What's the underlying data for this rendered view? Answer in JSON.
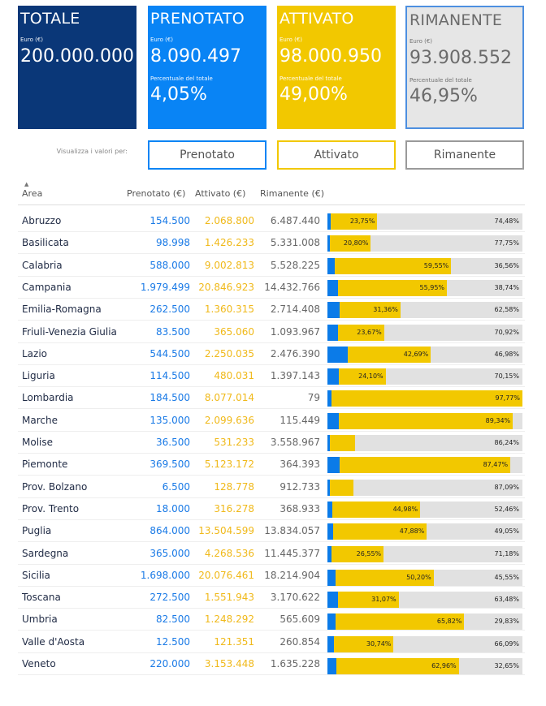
{
  "cards": {
    "totale": {
      "title": "TOTALE",
      "euro_label": "Euro (€)",
      "value": "200.000.000"
    },
    "prenotato": {
      "title": "PRENOTATO",
      "euro_label": "Euro (€)",
      "value": "8.090.497",
      "pct_label": "Percentuale del totale",
      "pct": "4,05%"
    },
    "attivato": {
      "title": "ATTIVATO",
      "euro_label": "Euro (€)",
      "value": "98.000.950",
      "pct_label": "Percentuale del totale",
      "pct": "49,00%"
    },
    "rimanente": {
      "title": "RIMANENTE",
      "euro_label": "Euro (€)",
      "value": "93.908.552",
      "pct_label": "Percentuale del totale",
      "pct": "46,95%"
    }
  },
  "filter": {
    "label": "Visualizza i valori per:",
    "buttons": {
      "prenotato": "Prenotato",
      "attivato": "Attivato",
      "rimanente": "Rimanente"
    }
  },
  "colors": {
    "blue_dark": "#0a3778",
    "blue": "#0984f5",
    "yellow": "#f2c800",
    "grey": "#e6e6e6"
  },
  "table": {
    "headers": {
      "area": "Area",
      "prenotato": "Prenotato (€)",
      "attivato": "Attivato (€)",
      "rimanente": "Rimanente (€)"
    },
    "rows": [
      {
        "area": "Abruzzo",
        "prenotato": "154.500",
        "attivato": "2.068.800",
        "rimanente": "6.487.440"
      },
      {
        "area": "Basilicata",
        "prenotato": "98.998",
        "attivato": "1.426.233",
        "rimanente": "5.331.008"
      },
      {
        "area": "Calabria",
        "prenotato": "588.000",
        "attivato": "9.002.813",
        "rimanente": "5.528.225"
      },
      {
        "area": "Campania",
        "prenotato": "1.979.499",
        "attivato": "20.846.923",
        "rimanente": "14.432.766"
      },
      {
        "area": "Emilia-Romagna",
        "prenotato": "262.500",
        "attivato": "1.360.315",
        "rimanente": "2.714.408"
      },
      {
        "area": "Friuli-Venezia Giulia",
        "prenotato": "83.500",
        "attivato": "365.060",
        "rimanente": "1.093.967"
      },
      {
        "area": "Lazio",
        "prenotato": "544.500",
        "attivato": "2.250.035",
        "rimanente": "2.476.390"
      },
      {
        "area": "Liguria",
        "prenotato": "114.500",
        "attivato": "480.031",
        "rimanente": "1.397.143"
      },
      {
        "area": "Lombardia",
        "prenotato": "184.500",
        "attivato": "8.077.014",
        "rimanente": "79"
      },
      {
        "area": "Marche",
        "prenotato": "135.000",
        "attivato": "2.099.636",
        "rimanente": "115.449"
      },
      {
        "area": "Molise",
        "prenotato": "36.500",
        "attivato": "531.233",
        "rimanente": "3.558.967"
      },
      {
        "area": "Piemonte",
        "prenotato": "369.500",
        "attivato": "5.123.172",
        "rimanente": "364.393"
      },
      {
        "area": "Prov. Bolzano",
        "prenotato": "6.500",
        "attivato": "128.778",
        "rimanente": "912.733"
      },
      {
        "area": "Prov. Trento",
        "prenotato": "18.000",
        "attivato": "316.278",
        "rimanente": "368.933"
      },
      {
        "area": "Puglia",
        "prenotato": "864.000",
        "attivato": "13.504.599",
        "rimanente": "13.834.057"
      },
      {
        "area": "Sardegna",
        "prenotato": "365.000",
        "attivato": "4.268.536",
        "rimanente": "11.445.377"
      },
      {
        "area": "Sicilia",
        "prenotato": "1.698.000",
        "attivato": "20.076.461",
        "rimanente": "18.214.904"
      },
      {
        "area": "Toscana",
        "prenotato": "272.500",
        "attivato": "1.551.943",
        "rimanente": "3.170.622"
      },
      {
        "area": "Umbria",
        "prenotato": "82.500",
        "attivato": "1.248.292",
        "rimanente": "565.609"
      },
      {
        "area": "Valle d'Aosta",
        "prenotato": "12.500",
        "attivato": "121.351",
        "rimanente": "260.854"
      },
      {
        "area": "Veneto",
        "prenotato": "220.000",
        "attivato": "3.153.448",
        "rimanente": "1.635.228"
      }
    ]
  },
  "bars": [
    {
      "p": 0.018,
      "a": 0.2375,
      "r": 0.7448,
      "a_label": "23,75%",
      "r_label": "74,48%"
    },
    {
      "p": 0.0145,
      "a": 0.208,
      "r": 0.7775,
      "a_label": "20,80%",
      "r_label": "77,75%"
    },
    {
      "p": 0.039,
      "a": 0.5955,
      "r": 0.3656,
      "a_label": "59,55%",
      "r_label": "36,56%"
    },
    {
      "p": 0.0531,
      "a": 0.5595,
      "r": 0.3874,
      "a_label": "55,95%",
      "r_label": "38,74%"
    },
    {
      "p": 0.0606,
      "a": 0.3136,
      "r": 0.6258,
      "a_label": "31,36%",
      "r_label": "62,58%"
    },
    {
      "p": 0.0541,
      "a": 0.2367,
      "r": 0.7092,
      "a_label": "23,67%",
      "r_label": "70,92%"
    },
    {
      "p": 0.1033,
      "a": 0.4269,
      "r": 0.4698,
      "a_label": "42,69%",
      "r_label": "46,98%"
    },
    {
      "p": 0.0575,
      "a": 0.241,
      "r": 0.7015,
      "a_label": "24,10%",
      "r_label": "70,15%"
    },
    {
      "p": 0.0223,
      "a": 0.9777,
      "r": 0,
      "a_label": "97,77%",
      "r_label": ""
    },
    {
      "p": 0.0572,
      "a": 0.8934,
      "r": 0.0494,
      "a_label": "89,34%",
      "r_label": ""
    },
    {
      "p": 0.0089,
      "a": 0.1287,
      "r": 0.8624,
      "a_label": "",
      "r_label": "86,24%"
    },
    {
      "p": 0.0631,
      "a": 0.8747,
      "r": 0.0622,
      "a_label": "87,47%",
      "r_label": ""
    },
    {
      "p": 0.0062,
      "a": 0.1229,
      "r": 0.8709,
      "a_label": "",
      "r_label": "87,09%"
    },
    {
      "p": 0.0256,
      "a": 0.4498,
      "r": 0.5246,
      "a_label": "44,98%",
      "r_label": "52,46%"
    },
    {
      "p": 0.0307,
      "a": 0.4788,
      "r": 0.4905,
      "a_label": "47,88%",
      "r_label": "49,05%"
    },
    {
      "p": 0.0227,
      "a": 0.2655,
      "r": 0.7118,
      "a_label": "26,55%",
      "r_label": "71,18%"
    },
    {
      "p": 0.0425,
      "a": 0.502,
      "r": 0.4555,
      "a_label": "50,20%",
      "r_label": "45,55%"
    },
    {
      "p": 0.0545,
      "a": 0.3107,
      "r": 0.6348,
      "a_label": "31,07%",
      "r_label": "63,48%"
    },
    {
      "p": 0.0435,
      "a": 0.6582,
      "r": 0.2983,
      "a_label": "65,82%",
      "r_label": "29,83%"
    },
    {
      "p": 0.0317,
      "a": 0.3074,
      "r": 0.6609,
      "a_label": "30,74%",
      "r_label": "66,09%"
    },
    {
      "p": 0.0439,
      "a": 0.6296,
      "r": 0.3265,
      "a_label": "62,96%",
      "r_label": "32,65%"
    }
  ]
}
